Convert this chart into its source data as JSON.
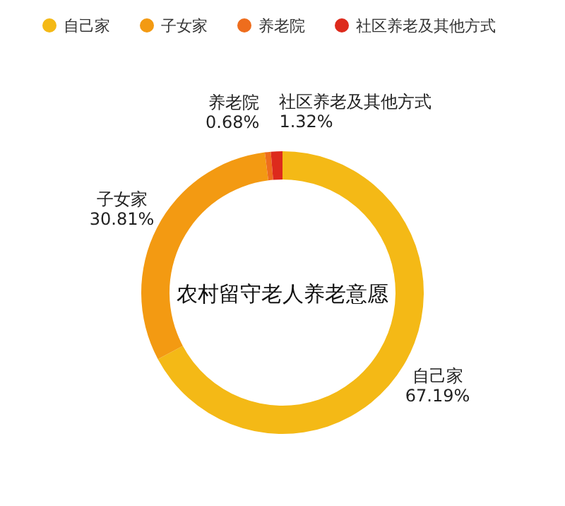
{
  "chart_data": {
    "type": "donut",
    "title": "农村留守老人养老意愿",
    "categories": [
      "自己家",
      "子女家",
      "养老院",
      "社区养老及其他方式"
    ],
    "values": [
      67.19,
      30.81,
      0.68,
      1.32
    ],
    "value_labels": [
      "67.19%",
      "30.81%",
      "0.68%",
      "1.32%"
    ],
    "colors": [
      "#f4b916",
      "#f39a12",
      "#ee6d1d",
      "#dd2a1c"
    ],
    "legend": "top"
  }
}
